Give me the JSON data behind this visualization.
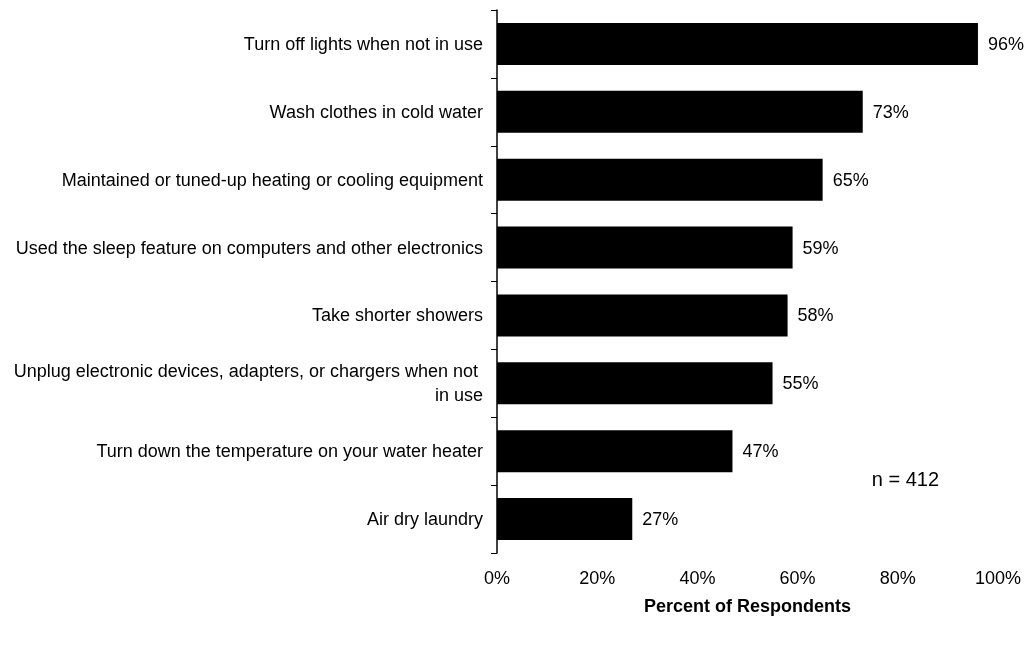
{
  "chart_data": {
    "type": "bar",
    "orientation": "horizontal",
    "xlabel": "Percent of Respondents",
    "categories": [
      "Turn off lights when not in use",
      "Wash clothes in cold water",
      "Maintained or tuned-up heating or cooling equipment",
      "Used the sleep feature on computers and other electronics",
      "Take shorter showers",
      "Unplug electronic devices, adapters, or chargers when not in use",
      "Turn down the temperature on your water heater",
      "Air dry laundry"
    ],
    "values": [
      96,
      73,
      65,
      59,
      58,
      55,
      47,
      27
    ],
    "value_labels": [
      "96%",
      "73%",
      "65%",
      "59%",
      "58%",
      "55%",
      "47%",
      "27%"
    ],
    "color": "#000000",
    "xlim": [
      0,
      100
    ],
    "xticks": [
      {
        "value": 0,
        "label": "0%"
      },
      {
        "value": 20,
        "label": "20%"
      },
      {
        "value": 40,
        "label": "40%"
      },
      {
        "value": 60,
        "label": "60%"
      },
      {
        "value": 80,
        "label": "80%"
      },
      {
        "value": 100,
        "label": "100%"
      }
    ],
    "annotations": [
      "n = 412"
    ]
  }
}
